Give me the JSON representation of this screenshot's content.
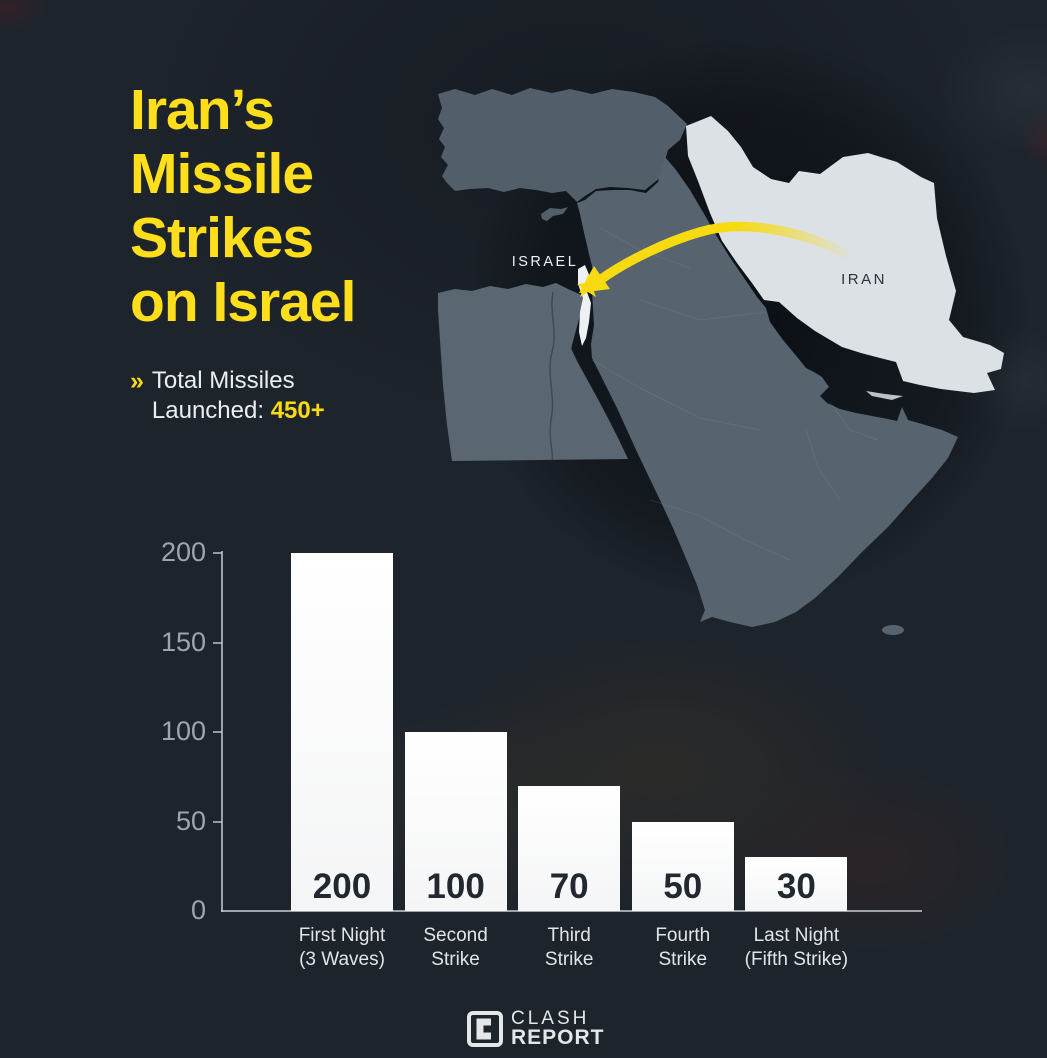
{
  "title": {
    "lines": [
      "Iran’s",
      "Missile",
      "Strikes",
      "on Israel"
    ]
  },
  "subtitle": {
    "chevron": "»",
    "line1": "Total Missiles",
    "line2_prefix": "Launched: ",
    "line2_value": "450+"
  },
  "map": {
    "labels": {
      "israel": "ISRAEL",
      "iran": "IRAN"
    },
    "highlight_country": "Iran",
    "arrow": "yellow arc from Iran to Israel"
  },
  "chart_data": {
    "type": "bar",
    "categories": [
      "First Night (3 Waves)",
      "Second Strike",
      "Third Strike",
      "Fourth Strike",
      "Last Night (Fifth Strike)"
    ],
    "category_lines": [
      [
        "First Night",
        "(3 Waves)"
      ],
      [
        "Second",
        "Strike"
      ],
      [
        "Third",
        "Strike"
      ],
      [
        "Fourth",
        "Strike"
      ],
      [
        "Last Night",
        "(Fifth Strike)"
      ]
    ],
    "values": [
      200,
      100,
      70,
      50,
      30
    ],
    "yticks": [
      0,
      50,
      100,
      150,
      200
    ],
    "ylim": [
      0,
      200
    ],
    "title": "Iran's Missile Strikes on Israel",
    "xlabel": "",
    "ylabel": "",
    "grid": false,
    "legend": false,
    "bar_color": "#f9fafb",
    "value_label_color": "#22282f"
  },
  "logo": {
    "line1": "CLASH",
    "line2": "REPORT"
  },
  "colors": {
    "background": "#1e242c",
    "title_yellow": "#ffdf1b",
    "accent_yellow": "#f8da11",
    "land": "#56636e",
    "iran_fill": "#dce1e5",
    "israel_fill": "#eef1f3",
    "tick_gray": "#9fa5ac"
  }
}
